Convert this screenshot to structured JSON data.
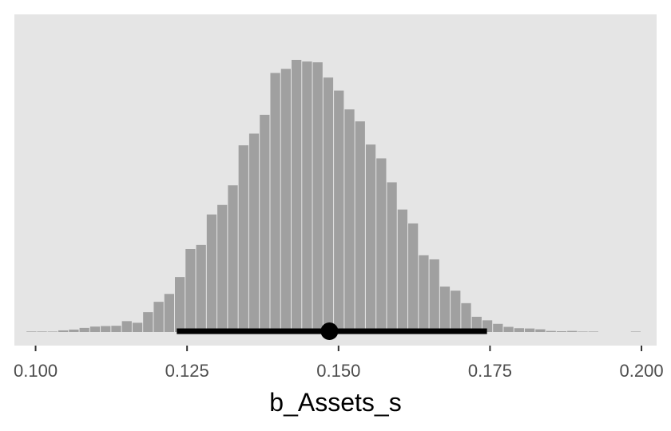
{
  "chart_data": {
    "type": "histogram",
    "title": "",
    "xlabel": "b_Assets_s",
    "ylabel": "",
    "xlim": [
      0.0965,
      0.2025
    ],
    "ylim": [
      0,
      1.05
    ],
    "grid": false,
    "x_ticks": [
      0.1,
      0.125,
      0.15,
      0.175,
      0.2
    ],
    "x_tick_labels": [
      "0.100",
      "0.125",
      "0.150",
      "0.175",
      "0.200"
    ],
    "y_axis_shown": false,
    "bin_width": 0.00175,
    "bin_starts": [
      0.0985,
      0.10025,
      0.102,
      0.10375,
      0.1055,
      0.10725,
      0.109,
      0.11075,
      0.1125,
      0.11425,
      0.116,
      0.11775,
      0.1195,
      0.12125,
      0.123,
      0.12475,
      0.1265,
      0.12825,
      0.13,
      0.13175,
      0.1335,
      0.13525,
      0.137,
      0.13875,
      0.1405,
      0.14225,
      0.144,
      0.14575,
      0.1475,
      0.14925,
      0.151,
      0.15275,
      0.1545,
      0.15625,
      0.158,
      0.15975,
      0.1615,
      0.16325,
      0.165,
      0.16675,
      0.1685,
      0.17025,
      0.172,
      0.17375,
      0.1755,
      0.17725,
      0.179,
      0.18075,
      0.1825,
      0.18425,
      0.186,
      0.18775,
      0.1895,
      0.19125,
      0.193,
      0.19475,
      0.1965,
      0.19825
    ],
    "values": [
      0.002,
      0.002,
      0.001,
      0.006,
      0.009,
      0.015,
      0.02,
      0.022,
      0.023,
      0.04,
      0.034,
      0.073,
      0.111,
      0.14,
      0.202,
      0.305,
      0.32,
      0.432,
      0.467,
      0.539,
      0.686,
      0.729,
      0.798,
      0.952,
      0.967,
      1.0,
      0.994,
      0.991,
      0.935,
      0.887,
      0.818,
      0.774,
      0.689,
      0.638,
      0.55,
      0.45,
      0.399,
      0.282,
      0.267,
      0.167,
      0.152,
      0.106,
      0.056,
      0.043,
      0.03,
      0.019,
      0.014,
      0.013,
      0.01,
      0.004,
      0.003,
      0.004,
      0.001,
      0.001,
      0.0,
      0.0,
      0.0,
      0.001
    ],
    "bar_color": "#a0a0a0",
    "panel_background": "#e5e5e5",
    "interval": {
      "point": 0.1485,
      "lower": 0.1233,
      "upper": 0.1745,
      "color": "#000000"
    }
  }
}
